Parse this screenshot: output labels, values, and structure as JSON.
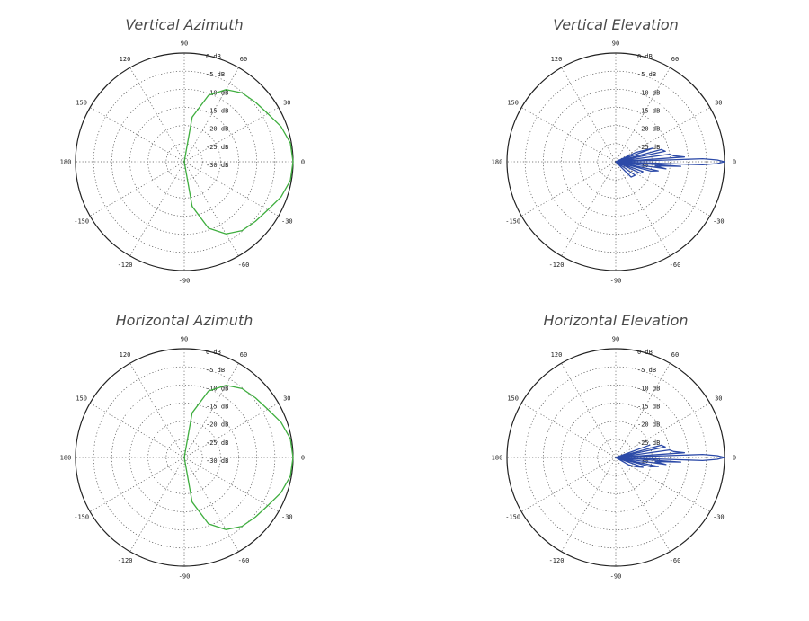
{
  "chart_data": [
    {
      "type": "polar-line",
      "title": "Vertical Azimuth",
      "color": "#3fae3f",
      "radial_ticks": [
        "0 dB",
        "-5 dB",
        "-10 dB",
        "-15 dB",
        "-20 dB",
        "-25 dB",
        "-30 dB"
      ],
      "radial_range_db": [
        -30,
        0
      ],
      "angle_ticks": [
        "0",
        "30",
        "60",
        "90",
        "120",
        "150",
        "180",
        "-150",
        "-120",
        "-90",
        "-60",
        "-30"
      ],
      "grid": true,
      "series": [
        {
          "angle_deg": [
            -90,
            -80,
            -70,
            -60,
            -50,
            -40,
            -30,
            -20,
            -10,
            0,
            10,
            20,
            30,
            40,
            50,
            60,
            70,
            80,
            90
          ],
          "gain_db": [
            -30,
            -17.5,
            -10.5,
            -7,
            -5.2,
            -4.4,
            -3.4,
            -1.6,
            -0.3,
            0,
            -0.3,
            -1.6,
            -3.4,
            -4.4,
            -5.2,
            -7,
            -10.5,
            -17.5,
            -30
          ]
        }
      ]
    },
    {
      "type": "polar-line",
      "title": "Vertical Elevation",
      "color": "#2c4aa8",
      "radial_ticks": [
        "0 dB",
        "-5 dB",
        "-10 dB",
        "-15 dB",
        "-20 dB",
        "-25 dB",
        "-30 dB"
      ],
      "radial_range_db": [
        -30,
        0
      ],
      "angle_ticks": [
        "0",
        "30",
        "60",
        "90",
        "120",
        "150",
        "180",
        "-150",
        "-120",
        "-90",
        "-60",
        "-30"
      ],
      "grid": true,
      "series": [
        {
          "angle_deg": [
            -90,
            -60,
            -45,
            -35,
            -30,
            -25,
            -20,
            -17,
            -15,
            -12,
            -10,
            -8,
            -6,
            -4,
            -3,
            -2,
            -1,
            0,
            1,
            2,
            3,
            4,
            6,
            8,
            10,
            12,
            15,
            18,
            20,
            25,
            30,
            90
          ],
          "gain_db": [
            -30,
            -30,
            -24,
            -23.5,
            -30,
            -22.5,
            -22,
            -30,
            -20,
            -18,
            -30,
            -16,
            -19,
            -12,
            -30,
            -6,
            -2,
            0,
            -2,
            -6,
            -30,
            -11,
            -14,
            -15,
            -30,
            -16,
            -17,
            -30,
            -19,
            -24,
            -30,
            -30
          ]
        }
      ]
    },
    {
      "type": "polar-line",
      "title": "Horizontal Azimuth",
      "color": "#3fae3f",
      "radial_ticks": [
        "0 dB",
        "-5 dB",
        "-10 dB",
        "-15 dB",
        "-20 dB",
        "-25 dB",
        "-30 dB"
      ],
      "radial_range_db": [
        -30,
        0
      ],
      "angle_ticks": [
        "0",
        "30",
        "60",
        "90",
        "120",
        "150",
        "180",
        "-150",
        "-120",
        "-90",
        "-60",
        "-30"
      ],
      "grid": true,
      "series": [
        {
          "angle_deg": [
            -90,
            -80,
            -70,
            -60,
            -50,
            -40,
            -30,
            -20,
            -10,
            0,
            10,
            20,
            30,
            40,
            50,
            60,
            70,
            80,
            90
          ],
          "gain_db": [
            -30,
            -17.5,
            -10.5,
            -7,
            -5.2,
            -4.4,
            -3.4,
            -1.6,
            -0.3,
            0,
            -0.3,
            -1.6,
            -3.4,
            -4.4,
            -5.2,
            -7,
            -10.5,
            -17.5,
            -30
          ]
        }
      ]
    },
    {
      "type": "polar-line",
      "title": "Horizontal Elevation",
      "color": "#2c4aa8",
      "radial_ticks": [
        "0 dB",
        "-5 dB",
        "-10 dB",
        "-15 dB",
        "-20 dB",
        "-25 dB",
        "-30 dB"
      ],
      "radial_range_db": [
        -30,
        0
      ],
      "angle_ticks": [
        "0",
        "30",
        "60",
        "90",
        "120",
        "150",
        "180",
        "-150",
        "-120",
        "-90",
        "-60",
        "-30"
      ],
      "grid": true,
      "series": [
        {
          "angle_deg": [
            -90,
            -45,
            -30,
            -25,
            -20,
            -17,
            -15,
            -12,
            -10,
            -8,
            -6,
            -4,
            -3,
            -2,
            -1,
            0,
            1,
            2,
            3,
            4,
            6,
            8,
            10,
            12,
            15,
            18,
            20,
            90
          ],
          "gain_db": [
            -30,
            -30,
            -26,
            -24,
            -22,
            -30,
            -20,
            -18,
            -30,
            -16,
            -19,
            -12,
            -30,
            -6,
            -2,
            0,
            -2,
            -6,
            -30,
            -11,
            -14,
            -15,
            -30,
            -16,
            -17,
            -30,
            -20,
            -30
          ]
        }
      ]
    }
  ]
}
